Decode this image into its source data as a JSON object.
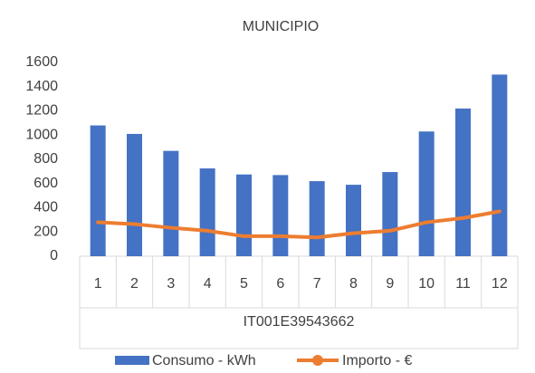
{
  "chart_data": {
    "type": "bar_line",
    "title": "MUNICIPIO",
    "categories": [
      "1",
      "2",
      "3",
      "4",
      "5",
      "6",
      "7",
      "8",
      "9",
      "10",
      "11",
      "12"
    ],
    "category_group": "IT001E39543662",
    "series": [
      {
        "name": "Consumo - kWh",
        "type": "bar",
        "color": "#4472c4",
        "values": [
          1080,
          1010,
          870,
          725,
          675,
          670,
          620,
          590,
          695,
          1030,
          1220,
          1500
        ]
      },
      {
        "name": "Importo - €",
        "type": "line",
        "color": "#ed7d31",
        "values": [
          280,
          265,
          235,
          210,
          165,
          165,
          155,
          190,
          210,
          280,
          315,
          370
        ]
      }
    ],
    "ylim": [
      0,
      1600
    ],
    "yticks": [
      0,
      200,
      400,
      600,
      800,
      1000,
      1200,
      1400,
      1600
    ],
    "grid": false,
    "legend": "bottom"
  }
}
